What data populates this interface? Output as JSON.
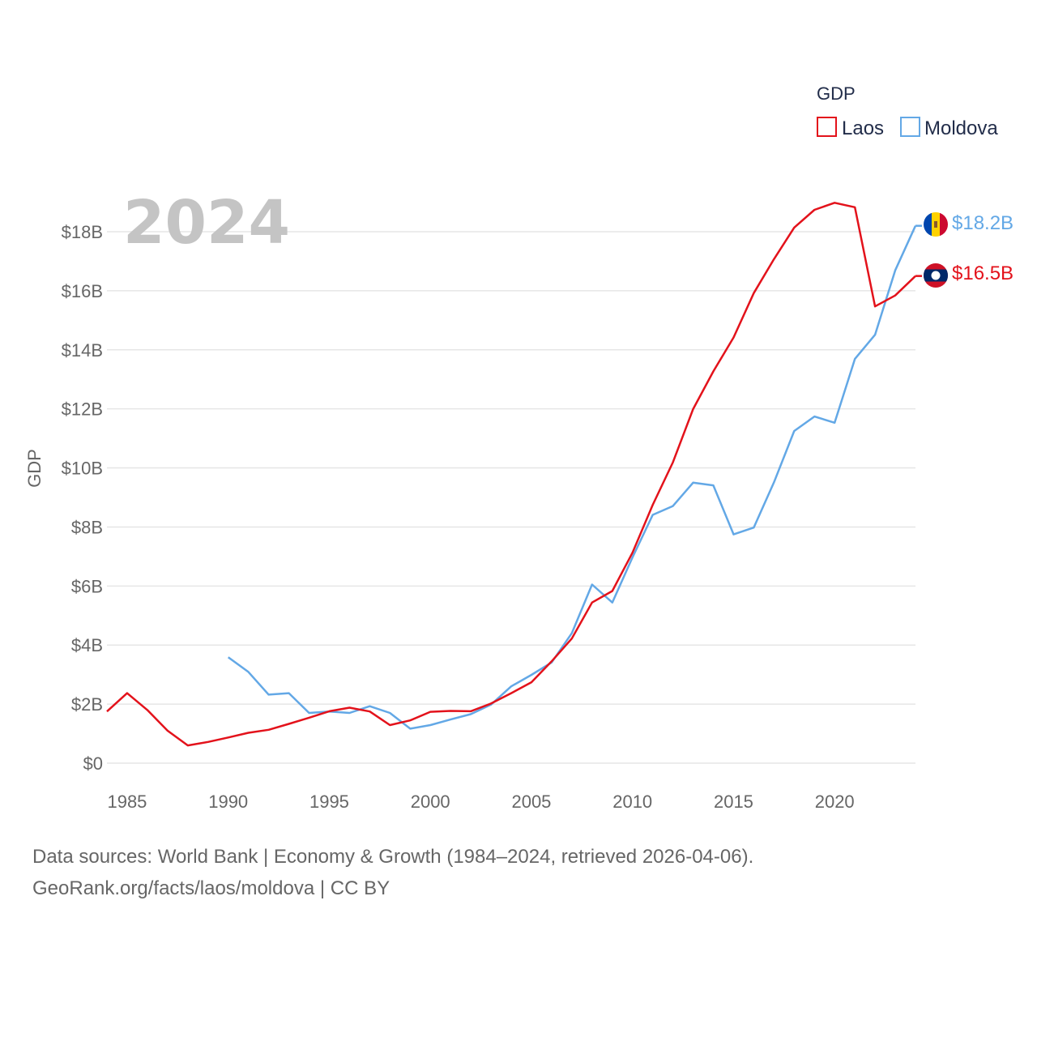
{
  "chart_data": {
    "type": "line",
    "title": "GDP",
    "ylabel": "GDP",
    "xlabel": "",
    "current_year": "2024",
    "xlim": [
      1984,
      2024
    ],
    "ylim": [
      0,
      19.5
    ],
    "x_ticks": [
      1985,
      1990,
      1995,
      2000,
      2005,
      2010,
      2015,
      2020
    ],
    "y_ticks": [
      0,
      2,
      4,
      6,
      8,
      10,
      12,
      14,
      16,
      18
    ],
    "y_tick_labels": [
      "$0",
      "$2B",
      "$4B",
      "$6B",
      "$8B",
      "$10B",
      "$12B",
      "$14B",
      "$16B",
      "$18B"
    ],
    "legend": {
      "title": "GDP",
      "position": "top-right"
    },
    "series": [
      {
        "name": "Laos",
        "color": "#e3121b",
        "end_label": "$16.5B",
        "flag": "laos-flag-icon",
        "points": [
          [
            1984,
            1.75
          ],
          [
            1985,
            2.37
          ],
          [
            1986,
            1.8
          ],
          [
            1987,
            1.1
          ],
          [
            1988,
            0.6
          ],
          [
            1989,
            0.72
          ],
          [
            1990,
            0.87
          ],
          [
            1991,
            1.03
          ],
          [
            1992,
            1.13
          ],
          [
            1993,
            1.33
          ],
          [
            1994,
            1.54
          ],
          [
            1995,
            1.76
          ],
          [
            1996,
            1.88
          ],
          [
            1997,
            1.75
          ],
          [
            1998,
            1.29
          ],
          [
            1999,
            1.45
          ],
          [
            2000,
            1.74
          ],
          [
            2001,
            1.77
          ],
          [
            2002,
            1.76
          ],
          [
            2003,
            2.02
          ],
          [
            2004,
            2.37
          ],
          [
            2005,
            2.74
          ],
          [
            2006,
            3.45
          ],
          [
            2007,
            4.22
          ],
          [
            2008,
            5.44
          ],
          [
            2009,
            5.83
          ],
          [
            2010,
            7.13
          ],
          [
            2011,
            8.75
          ],
          [
            2012,
            10.19
          ],
          [
            2013,
            11.99
          ],
          [
            2014,
            13.27
          ],
          [
            2015,
            14.42
          ],
          [
            2016,
            15.92
          ],
          [
            2017,
            17.07
          ],
          [
            2018,
            18.14
          ],
          [
            2019,
            18.74
          ],
          [
            2020,
            18.98
          ],
          [
            2021,
            18.83
          ],
          [
            2022,
            15.47
          ],
          [
            2023,
            15.84
          ],
          [
            2024,
            16.5
          ]
        ]
      },
      {
        "name": "Moldova",
        "color": "#63a8e6",
        "end_label": "$18.2B",
        "flag": "moldova-flag-icon",
        "points": [
          [
            1990,
            3.59
          ],
          [
            1991,
            3.09
          ],
          [
            1992,
            2.32
          ],
          [
            1993,
            2.37
          ],
          [
            1994,
            1.7
          ],
          [
            1995,
            1.75
          ],
          [
            1996,
            1.7
          ],
          [
            1997,
            1.93
          ],
          [
            1998,
            1.7
          ],
          [
            1999,
            1.17
          ],
          [
            2000,
            1.29
          ],
          [
            2001,
            1.48
          ],
          [
            2002,
            1.66
          ],
          [
            2003,
            1.98
          ],
          [
            2004,
            2.6
          ],
          [
            2005,
            2.99
          ],
          [
            2006,
            3.41
          ],
          [
            2007,
            4.4
          ],
          [
            2008,
            6.05
          ],
          [
            2009,
            5.44
          ],
          [
            2010,
            6.97
          ],
          [
            2011,
            8.41
          ],
          [
            2012,
            8.71
          ],
          [
            2013,
            9.5
          ],
          [
            2014,
            9.41
          ],
          [
            2015,
            7.75
          ],
          [
            2016,
            7.98
          ],
          [
            2017,
            9.51
          ],
          [
            2018,
            11.25
          ],
          [
            2019,
            11.74
          ],
          [
            2020,
            11.53
          ],
          [
            2021,
            13.69
          ],
          [
            2022,
            14.51
          ],
          [
            2023,
            16.69
          ],
          [
            2024,
            18.2
          ]
        ]
      }
    ]
  },
  "footer": {
    "line1": "Data sources: World Bank | Economy & Growth (1984–2024, retrieved 2026-04-06).",
    "line2": "GeoRank.org/facts/laos/moldova | CC BY"
  }
}
